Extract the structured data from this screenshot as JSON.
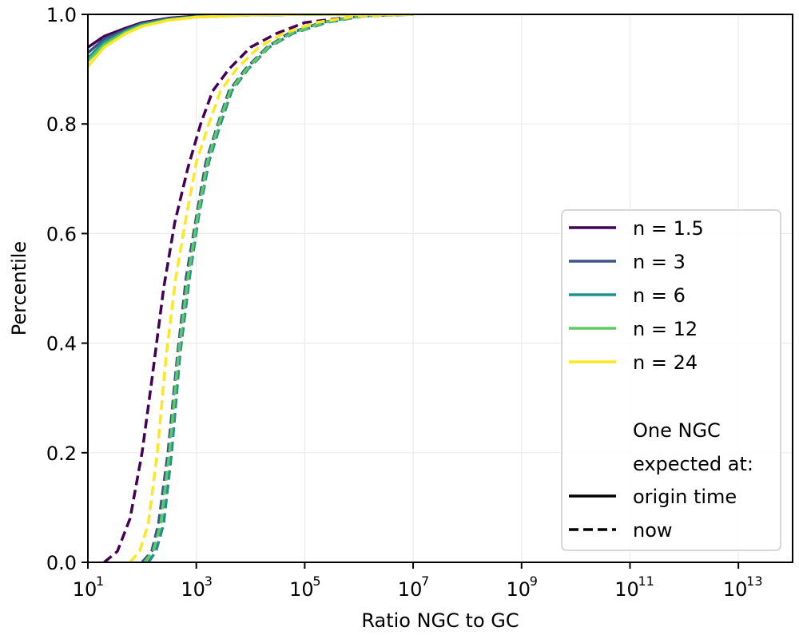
{
  "chart_data": {
    "type": "line",
    "xlabel": "Ratio NGC to GC",
    "ylabel": "Percentile",
    "xscale": "log",
    "xlim": [
      10,
      100000000000000.0
    ],
    "ylim": [
      0.0,
      1.0
    ],
    "grid": true,
    "legend_placement": "center-right",
    "x_ticks": [
      {
        "base": "10",
        "exp": "1",
        "value": 10
      },
      {
        "base": "10",
        "exp": "3",
        "value": 1000
      },
      {
        "base": "10",
        "exp": "5",
        "value": 100000
      },
      {
        "base": "10",
        "exp": "7",
        "value": 10000000
      },
      {
        "base": "10",
        "exp": "9",
        "value": 1000000000
      },
      {
        "base": "10",
        "exp": "11",
        "value": 100000000000
      },
      {
        "base": "10",
        "exp": "13",
        "value": 10000000000000
      }
    ],
    "y_ticks": [
      "0.0",
      "0.2",
      "0.4",
      "0.6",
      "0.8",
      "1.0"
    ],
    "series": [
      {
        "name": "n = 1.5",
        "color": "#440154",
        "origin_time": {
          "x": [
            10,
            20,
            50,
            100,
            300,
            1000,
            10000,
            100000,
            10000000
          ],
          "y": [
            0.94,
            0.96,
            0.975,
            0.985,
            0.993,
            0.997,
            0.999,
            1.0,
            1.0
          ]
        },
        "now": {
          "x": [
            20,
            35,
            60,
            100,
            150,
            250,
            400,
            700,
            1200,
            2000,
            4000,
            10000,
            30000,
            100000,
            1000000,
            10000000
          ],
          "y": [
            0.0,
            0.02,
            0.08,
            0.2,
            0.33,
            0.5,
            0.62,
            0.72,
            0.8,
            0.86,
            0.9,
            0.94,
            0.965,
            0.985,
            0.997,
            1.0
          ]
        }
      },
      {
        "name": "n = 3",
        "color": "#3b528b",
        "origin_time": {
          "x": [
            10,
            20,
            50,
            100,
            300,
            1000,
            10000,
            100000,
            10000000
          ],
          "y": [
            0.93,
            0.955,
            0.972,
            0.983,
            0.992,
            0.996,
            0.999,
            1.0,
            1.0
          ]
        },
        "now": {
          "x": [
            100,
            150,
            200,
            300,
            450,
            650,
            1000,
            1500,
            2500,
            4000,
            8000,
            20000,
            50000,
            200000,
            1000000,
            10000000
          ],
          "y": [
            0.0,
            0.02,
            0.07,
            0.2,
            0.38,
            0.52,
            0.63,
            0.73,
            0.8,
            0.86,
            0.9,
            0.94,
            0.965,
            0.985,
            0.997,
            1.0
          ]
        }
      },
      {
        "name": "n = 6",
        "color": "#21908d",
        "origin_time": {
          "x": [
            10,
            20,
            50,
            100,
            300,
            1000,
            10000,
            100000,
            10000000
          ],
          "y": [
            0.92,
            0.95,
            0.97,
            0.982,
            0.991,
            0.996,
            0.999,
            1.0,
            1.0
          ]
        },
        "now": {
          "x": [
            130,
            180,
            250,
            350,
            500,
            750,
            1100,
            1700,
            2800,
            4500,
            9000,
            22000,
            60000,
            250000,
            1200000,
            10000000
          ],
          "y": [
            0.0,
            0.02,
            0.07,
            0.2,
            0.38,
            0.52,
            0.63,
            0.73,
            0.8,
            0.86,
            0.9,
            0.94,
            0.965,
            0.985,
            0.997,
            1.0
          ]
        }
      },
      {
        "name": "n = 12",
        "color": "#5ec962",
        "origin_time": {
          "x": [
            10,
            20,
            50,
            100,
            300,
            1000,
            10000,
            100000,
            10000000
          ],
          "y": [
            0.915,
            0.945,
            0.968,
            0.98,
            0.99,
            0.995,
            0.999,
            1.0,
            1.0
          ]
        },
        "now": {
          "x": [
            110,
            160,
            220,
            320,
            470,
            700,
            1050,
            1600,
            2600,
            4200,
            8500,
            21000,
            55000,
            220000,
            1100000,
            10000000
          ],
          "y": [
            0.0,
            0.02,
            0.07,
            0.2,
            0.38,
            0.52,
            0.63,
            0.73,
            0.8,
            0.86,
            0.9,
            0.94,
            0.965,
            0.985,
            0.997,
            1.0
          ]
        }
      },
      {
        "name": "n = 24",
        "color": "#fde725",
        "origin_time": {
          "x": [
            10,
            20,
            50,
            100,
            300,
            1000,
            10000,
            100000,
            10000000
          ],
          "y": [
            0.905,
            0.94,
            0.965,
            0.978,
            0.989,
            0.995,
            0.999,
            1.0,
            1.0
          ]
        },
        "now": {
          "x": [
            60,
            90,
            130,
            190,
            280,
            420,
            650,
            1000,
            1700,
            2800,
            5500,
            14000,
            40000,
            160000,
            900000,
            10000000
          ],
          "y": [
            0.0,
            0.02,
            0.07,
            0.2,
            0.38,
            0.52,
            0.63,
            0.73,
            0.8,
            0.86,
            0.9,
            0.94,
            0.965,
            0.985,
            0.997,
            1.0
          ]
        }
      }
    ],
    "legend": {
      "heading_line1": "One NGC",
      "heading_line2": "expected at:",
      "solid_label": "origin time",
      "dashed_label": "now"
    }
  }
}
